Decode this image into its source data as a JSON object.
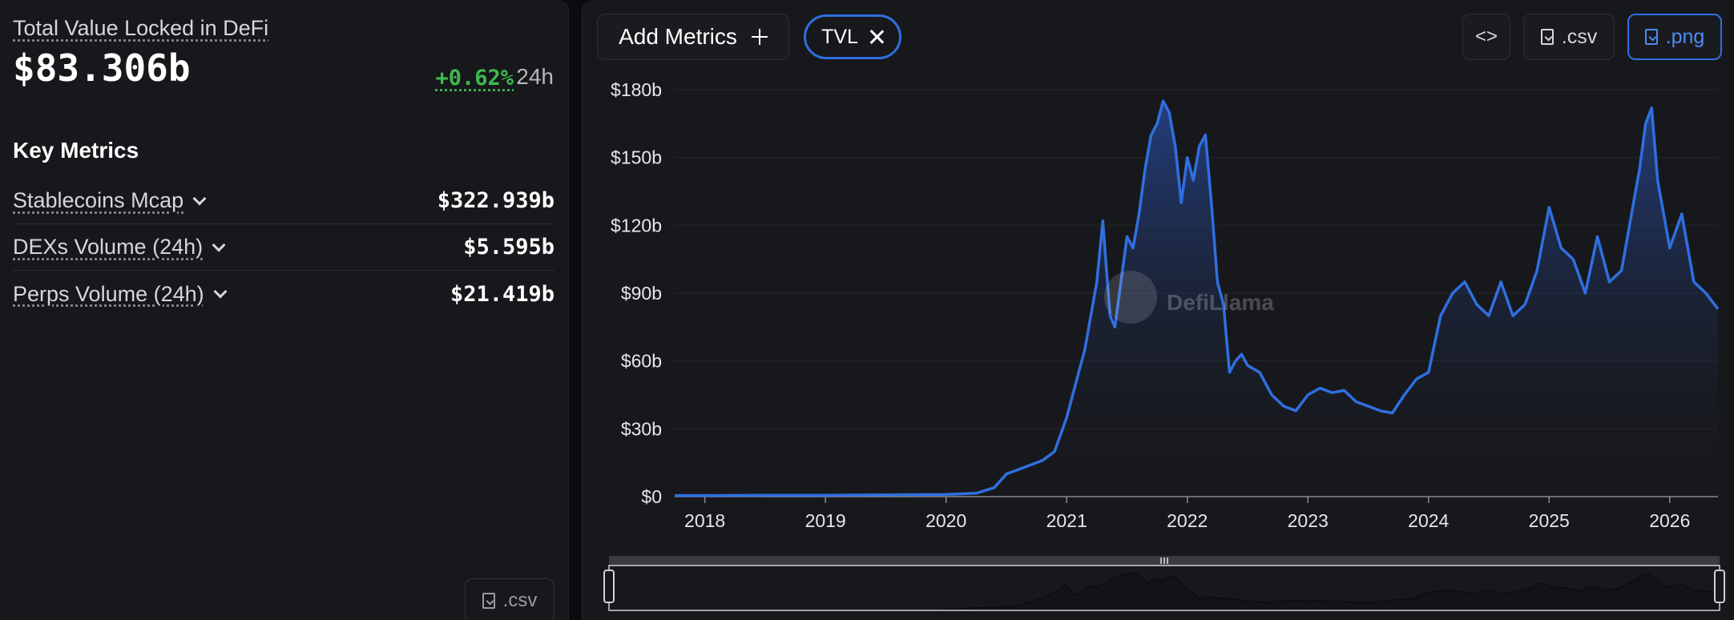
{
  "summary": {
    "label": "Total Value Locked in DeFi",
    "value": "$83.306b",
    "change": "+0.62%",
    "period": "24h"
  },
  "key_metrics": {
    "title": "Key Metrics",
    "items": [
      {
        "label": "Stablecoins Mcap",
        "value": "$322.939b"
      },
      {
        "label": "DEXs Volume (24h)",
        "value": "$5.595b"
      },
      {
        "label": "Perps Volume (24h)",
        "value": "$21.419b"
      }
    ],
    "csv_label": ".csv"
  },
  "toolbar": {
    "add_metrics_label": "Add Metrics",
    "metric_pill": "TVL",
    "embed_label": "<>",
    "csv_label": ".csv",
    "png_label": ".png"
  },
  "watermark": "DefiLlama",
  "colors": {
    "line": "#2f6fe0",
    "positive": "#3fb950",
    "panel": "#17181b"
  },
  "chart_data": {
    "type": "area",
    "title": "",
    "xlabel": "",
    "ylabel": "",
    "x_ticks": [
      "2018",
      "2019",
      "2020",
      "2021",
      "2022",
      "2023",
      "2024",
      "2025",
      "2026"
    ],
    "y_ticks": [
      "$0",
      "$30b",
      "$60b",
      "$90b",
      "$120b",
      "$150b",
      "$180b"
    ],
    "ylim": [
      0,
      180
    ],
    "xlim": [
      2017.75,
      2026.4
    ],
    "grid": true,
    "legend": "none",
    "series": [
      {
        "x": [
          2017.75,
          2018.0,
          2018.5,
          2019.0,
          2019.5,
          2020.0,
          2020.25,
          2020.4,
          2020.5,
          2020.6,
          2020.7,
          2020.8,
          2020.9,
          2021.0,
          2021.05,
          2021.1,
          2021.15,
          2021.2,
          2021.25,
          2021.3,
          2021.33,
          2021.36,
          2021.4,
          2021.45,
          2021.5,
          2021.55,
          2021.6,
          2021.65,
          2021.7,
          2021.75,
          2021.8,
          2021.85,
          2021.9,
          2021.95,
          2022.0,
          2022.05,
          2022.1,
          2022.15,
          2022.2,
          2022.25,
          2022.3,
          2022.35,
          2022.4,
          2022.45,
          2022.5,
          2022.6,
          2022.7,
          2022.8,
          2022.9,
          2023.0,
          2023.1,
          2023.2,
          2023.3,
          2023.4,
          2023.5,
          2023.6,
          2023.7,
          2023.8,
          2023.9,
          2024.0,
          2024.1,
          2024.2,
          2024.3,
          2024.4,
          2024.5,
          2024.6,
          2024.7,
          2024.8,
          2024.9,
          2025.0,
          2025.1,
          2025.2,
          2025.3,
          2025.4,
          2025.5,
          2025.6,
          2025.7,
          2025.75,
          2025.8,
          2025.85,
          2025.9,
          2026.0,
          2026.1,
          2026.2,
          2026.3,
          2026.4
        ],
        "values": [
          0.5,
          0.5,
          0.6,
          0.6,
          0.8,
          1.0,
          1.5,
          4,
          10,
          12,
          14,
          16,
          20,
          35,
          45,
          55,
          65,
          80,
          95,
          122,
          100,
          80,
          75,
          95,
          115,
          110,
          125,
          145,
          160,
          165,
          175,
          170,
          155,
          130,
          150,
          140,
          155,
          160,
          130,
          95,
          85,
          55,
          60,
          63,
          58,
          55,
          45,
          40,
          38,
          45,
          48,
          46,
          47,
          42,
          40,
          38,
          37,
          45,
          52,
          55,
          80,
          90,
          95,
          85,
          80,
          95,
          80,
          85,
          100,
          128,
          110,
          105,
          90,
          115,
          95,
          100,
          130,
          145,
          165,
          172,
          140,
          110,
          125,
          95,
          90,
          83
        ]
      }
    ]
  }
}
